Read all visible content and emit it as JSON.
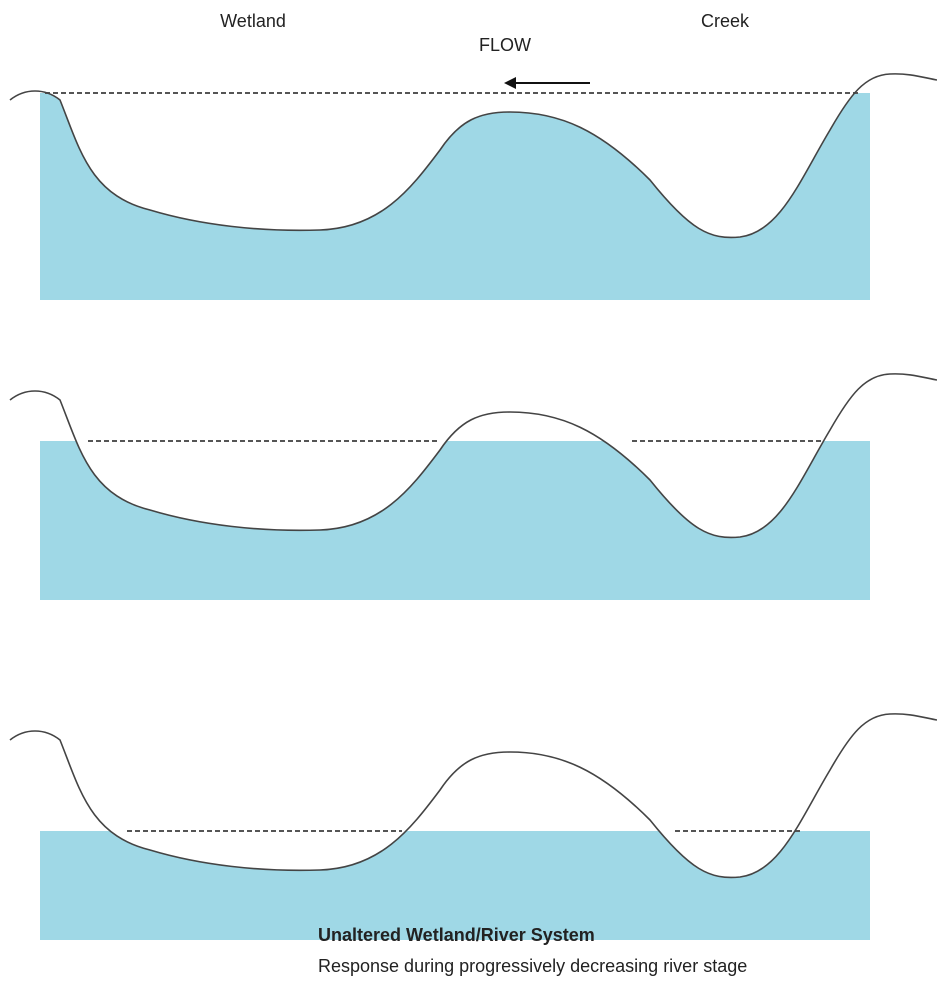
{
  "labels": {
    "wetland": "Wetland",
    "creek": "Creek",
    "flow": "FLOW"
  },
  "caption": {
    "title": "Unaltered Wetland/River System",
    "subtitle": "Response during progressively decreasing river stage"
  }
}
